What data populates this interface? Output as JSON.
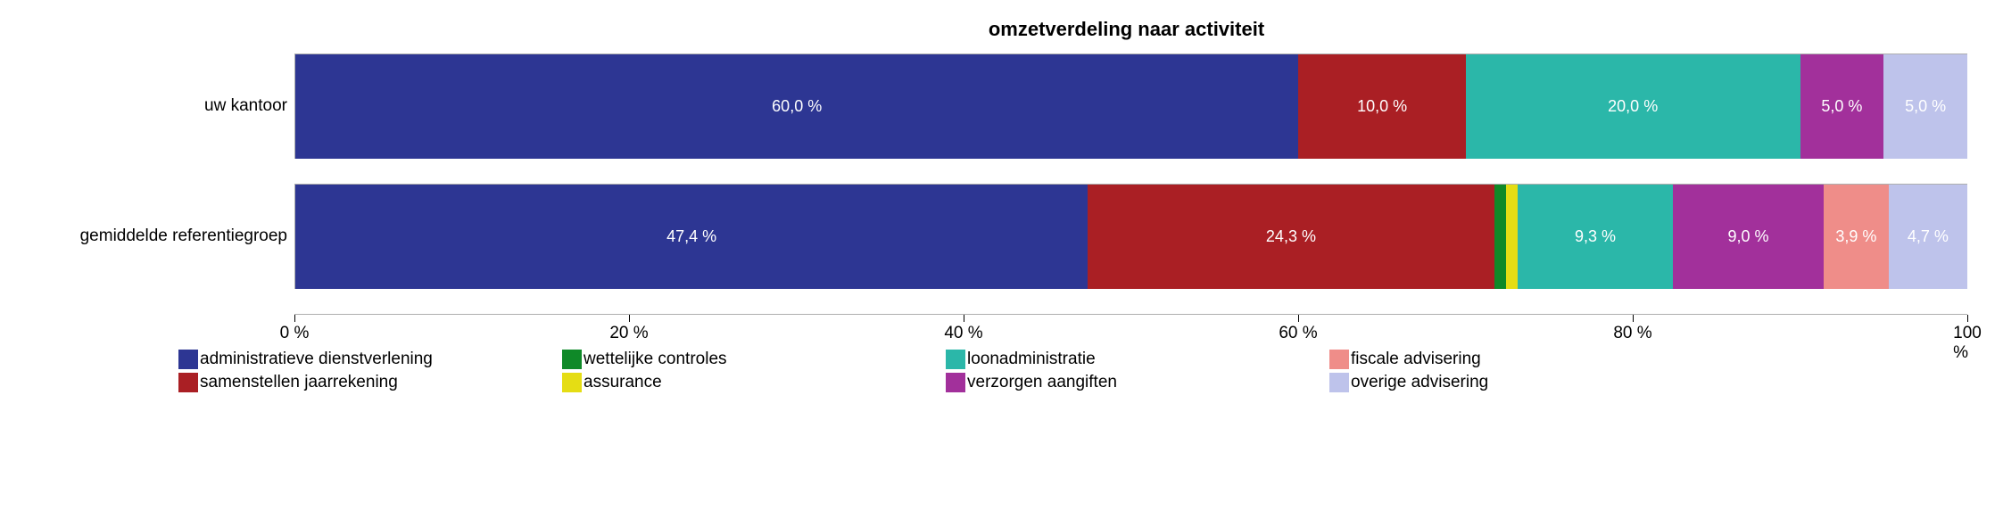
{
  "chart": {
    "type": "stacked-bar-horizontal",
    "title": "omzetverdeling naar activiteit",
    "title_fontsize": 22,
    "title_fontweight": "bold",
    "label_fontsize": 19,
    "value_label_fontsize": 18,
    "value_label_color": "#ffffff",
    "background_color": "#ffffff",
    "grid_color": "#aeaeae",
    "xlim": [
      0,
      100
    ],
    "xtick_step": 20,
    "xticks": [
      0,
      20,
      40,
      60,
      80,
      100
    ],
    "xtick_labels": [
      "0 %",
      "20 %",
      "40 %",
      "60 %",
      "80 %",
      "100 %"
    ],
    "categories": [
      "uw kantoor",
      "gemiddelde referentiegroep"
    ],
    "series": [
      {
        "name": "administratieve dienstverlening",
        "color": "#2d3693"
      },
      {
        "name": "wettelijke controles",
        "color": "#0f8928"
      },
      {
        "name": "loonadministratie",
        "color": "#2bb7a9"
      },
      {
        "name": "fiscale advisering",
        "color": "#ef8d89"
      },
      {
        "name": "samenstellen jaarrekening",
        "color": "#aa1f24"
      },
      {
        "name": "assurance",
        "color": "#e5dd14"
      },
      {
        "name": "verzorgen aangiften",
        "color": "#a2309b"
      },
      {
        "name": "overige advisering",
        "color": "#bec3eb"
      }
    ],
    "rows": [
      {
        "label": "uw kantoor",
        "segments": [
          {
            "series": "administratieve dienstverlening",
            "value": 60.0,
            "display": "60,0 %",
            "color": "#2d3693"
          },
          {
            "series": "samenstellen jaarrekening",
            "value": 10.0,
            "display": "10,0 %",
            "color": "#aa1f24"
          },
          {
            "series": "loonadministratie",
            "value": 20.0,
            "display": "20,0 %",
            "color": "#2bb7a9"
          },
          {
            "series": "verzorgen aangiften",
            "value": 5.0,
            "display": "5,0 %",
            "color": "#a2309b"
          },
          {
            "series": "overige advisering",
            "value": 5.0,
            "display": "5,0 %",
            "color": "#bec3eb"
          }
        ]
      },
      {
        "label": "gemiddelde referentiegroep",
        "segments": [
          {
            "series": "administratieve dienstverlening",
            "value": 47.4,
            "display": "47,4 %",
            "color": "#2d3693"
          },
          {
            "series": "samenstellen jaarrekening",
            "value": 24.3,
            "display": "24,3 %",
            "color": "#aa1f24"
          },
          {
            "series": "wettelijke controles",
            "value": 0.7,
            "display": "",
            "color": "#0f8928"
          },
          {
            "series": "assurance",
            "value": 0.7,
            "display": "",
            "color": "#e5dd14"
          },
          {
            "series": "loonadministratie",
            "value": 9.3,
            "display": "9,3 %",
            "color": "#2bb7a9"
          },
          {
            "series": "verzorgen aangiften",
            "value": 9.0,
            "display": "9,0 %",
            "color": "#a2309b"
          },
          {
            "series": "fiscale advisering",
            "value": 3.9,
            "display": "3,9 %",
            "color": "#ef8d89"
          },
          {
            "series": "overige advisering",
            "value": 4.7,
            "display": "4,7 %",
            "color": "#bec3eb"
          }
        ]
      }
    ]
  }
}
